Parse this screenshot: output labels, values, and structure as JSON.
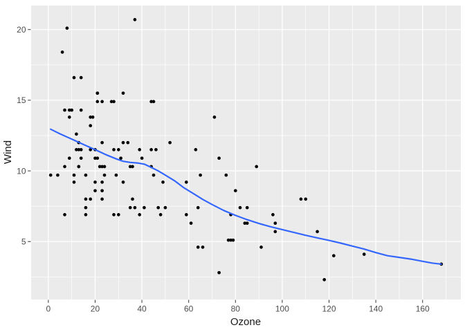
{
  "chart_data": {
    "type": "scatter",
    "title": "",
    "xlabel": "Ozone",
    "ylabel": "Wind",
    "theme": "ggplot2-grey",
    "grid": "on",
    "legend": "none",
    "xlim": [
      -7.35,
      176.35
    ],
    "ylim": [
      0.9,
      21.7
    ],
    "x_major_ticks": [
      0,
      20,
      40,
      60,
      80,
      100,
      120,
      140,
      160
    ],
    "x_minor_gridlines": [
      10,
      30,
      50,
      70,
      90,
      110,
      130,
      150,
      170
    ],
    "y_major_ticks": [
      5,
      10,
      15,
      20
    ],
    "y_minor_gridlines": [
      2.5,
      7.5,
      12.5,
      17.5
    ],
    "points": [
      [
        41,
        7.4
      ],
      [
        36,
        8
      ],
      [
        12,
        12.6
      ],
      [
        18,
        11.5
      ],
      [
        28,
        14.9
      ],
      [
        23,
        8.6
      ],
      [
        19,
        13.8
      ],
      [
        8,
        20.1
      ],
      [
        7,
        6.9
      ],
      [
        16,
        9.7
      ],
      [
        11,
        9.2
      ],
      [
        14,
        10.9
      ],
      [
        18,
        13.2
      ],
      [
        14,
        11.5
      ],
      [
        34,
        12
      ],
      [
        6,
        18.4
      ],
      [
        30,
        11.5
      ],
      [
        11,
        9.7
      ],
      [
        1,
        9.7
      ],
      [
        11,
        16.6
      ],
      [
        4,
        9.7
      ],
      [
        32,
        12
      ],
      [
        23,
        12
      ],
      [
        45,
        14.9
      ],
      [
        115,
        5.7
      ],
      [
        37,
        7.4
      ],
      [
        29,
        9.7
      ],
      [
        71,
        13.8
      ],
      [
        39,
        11.5
      ],
      [
        23,
        8
      ],
      [
        21,
        14.9
      ],
      [
        37,
        20.7
      ],
      [
        20,
        9.2
      ],
      [
        12,
        11.5
      ],
      [
        13,
        10.3
      ],
      [
        135,
        4.1
      ],
      [
        49,
        9.2
      ],
      [
        32,
        9.2
      ],
      [
        64,
        4.6
      ],
      [
        40,
        10.9
      ],
      [
        77,
        5.1
      ],
      [
        97,
        6.3
      ],
      [
        97,
        5.7
      ],
      [
        85,
        7.4
      ],
      [
        10,
        14.3
      ],
      [
        27,
        14.9
      ],
      [
        7,
        14.3
      ],
      [
        48,
        6.9
      ],
      [
        35,
        10.3
      ],
      [
        61,
        6.3
      ],
      [
        79,
        5.1
      ],
      [
        63,
        11.5
      ],
      [
        16,
        6.9
      ],
      [
        80,
        8.6
      ],
      [
        108,
        8
      ],
      [
        20,
        8.6
      ],
      [
        52,
        12
      ],
      [
        82,
        7.4
      ],
      [
        50,
        7.4
      ],
      [
        64,
        7.4
      ],
      [
        59,
        9.2
      ],
      [
        39,
        6.9
      ],
      [
        9,
        13.8
      ],
      [
        16,
        7.4
      ],
      [
        78,
        6.9
      ],
      [
        35,
        7.4
      ],
      [
        66,
        4.6
      ],
      [
        122,
        4
      ],
      [
        89,
        10.3
      ],
      [
        110,
        8
      ],
      [
        44,
        11.5
      ],
      [
        28,
        11.5
      ],
      [
        65,
        9.7
      ],
      [
        22,
        10.3
      ],
      [
        59,
        6.9
      ],
      [
        23,
        9.2
      ],
      [
        31,
        10.9
      ],
      [
        44,
        10.3
      ],
      [
        21,
        15.5
      ],
      [
        9,
        14.3
      ],
      [
        45,
        9.7
      ],
      [
        168,
        3.4
      ],
      [
        73,
        10.9
      ],
      [
        76,
        9.7
      ],
      [
        118,
        2.3
      ],
      [
        84,
        6.3
      ],
      [
        85,
        6.3
      ],
      [
        96,
        6.9
      ],
      [
        78,
        5.1
      ],
      [
        73,
        2.8
      ],
      [
        91,
        4.6
      ],
      [
        47,
        7.4
      ],
      [
        32,
        15.5
      ],
      [
        20,
        10.9
      ],
      [
        23,
        10.3
      ],
      [
        21,
        10.9
      ],
      [
        24,
        9.7
      ],
      [
        44,
        14.9
      ],
      [
        21,
        15.5
      ],
      [
        28,
        6.9
      ],
      [
        9,
        10.9
      ],
      [
        13,
        11.5
      ],
      [
        46,
        11.5
      ],
      [
        18,
        13.8
      ],
      [
        13,
        10.3
      ],
      [
        24,
        10.3
      ],
      [
        16,
        8
      ],
      [
        13,
        12
      ],
      [
        23,
        14.9
      ],
      [
        36,
        10.3
      ],
      [
        7,
        10.3
      ],
      [
        14,
        16.6
      ],
      [
        30,
        6.9
      ],
      [
        14,
        14.3
      ],
      [
        18,
        8
      ],
      [
        20,
        11.5
      ]
    ],
    "smooth": {
      "method": "loess",
      "se": false,
      "points": [
        [
          1,
          12.95
        ],
        [
          5,
          12.62
        ],
        [
          10,
          12.25
        ],
        [
          15,
          11.87
        ],
        [
          20,
          11.5
        ],
        [
          25,
          11.12
        ],
        [
          29,
          10.85
        ],
        [
          32,
          10.68
        ],
        [
          35,
          10.6
        ],
        [
          38,
          10.56
        ],
        [
          41,
          10.48
        ],
        [
          44,
          10.25
        ],
        [
          47,
          10.0
        ],
        [
          50,
          9.7
        ],
        [
          54,
          9.3
        ],
        [
          58,
          8.8
        ],
        [
          62,
          8.4
        ],
        [
          66,
          7.98
        ],
        [
          70,
          7.62
        ],
        [
          75,
          7.2
        ],
        [
          80,
          6.85
        ],
        [
          85,
          6.55
        ],
        [
          90,
          6.28
        ],
        [
          95,
          6.05
        ],
        [
          100,
          5.85
        ],
        [
          105,
          5.64
        ],
        [
          110,
          5.44
        ],
        [
          115,
          5.26
        ],
        [
          120,
          5.08
        ],
        [
          125,
          4.89
        ],
        [
          130,
          4.68
        ],
        [
          135,
          4.47
        ],
        [
          140,
          4.22
        ],
        [
          145,
          4.0
        ],
        [
          150,
          3.88
        ],
        [
          155,
          3.76
        ],
        [
          160,
          3.6
        ],
        [
          164,
          3.48
        ],
        [
          168,
          3.4
        ]
      ]
    },
    "colors": {
      "outer_bg": "#FFFFFF",
      "panel_bg": "#EBEBEB",
      "grid": "#FFFFFF",
      "point": "#000000",
      "smooth": "#3366FF",
      "tick_mark": "#333333",
      "tick_label": "#4D4D4D",
      "axis_title": "#1A1A1A"
    }
  }
}
